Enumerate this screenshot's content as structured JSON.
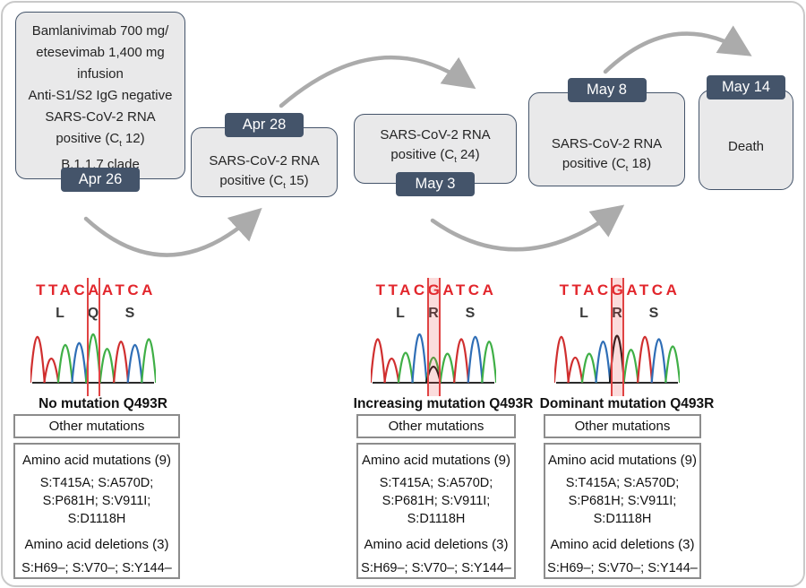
{
  "timeline": {
    "events": [
      {
        "date": "Apr 26",
        "lines": {
          "l1": "Bamlanivimab 700 mg/",
          "l2": "etesevimab 1,400 mg",
          "l3": "infusion",
          "l4": "Anti-S1/S2 IgG negative",
          "l5": "SARS-CoV-2 RNA",
          "ct_pre": "positive (C",
          "ct_sub": "t",
          "ct_post": " 12)",
          "l7": "B.1.1.7 clade"
        }
      },
      {
        "date": "Apr 28",
        "lines": {
          "l1": "SARS-CoV-2 RNA",
          "ct_pre": "positive (C",
          "ct_sub": "t",
          "ct_post": " 15)"
        }
      },
      {
        "date": "May 3",
        "lines": {
          "l1": "SARS-CoV-2 RNA",
          "ct_pre": "positive (C",
          "ct_sub": "t",
          "ct_post": " 24)"
        }
      },
      {
        "date": "May 8",
        "lines": {
          "l1": "SARS-CoV-2 RNA",
          "ct_pre": "positive (C",
          "ct_sub": "t",
          "ct_post": " 18)"
        }
      },
      {
        "date": "May 14",
        "lines": {
          "l1": "Death"
        }
      }
    ]
  },
  "chromatograms": [
    {
      "sequence": "TTACAATCA",
      "amino_acids": [
        "L",
        "Q",
        "S"
      ],
      "caption": "No mutation Q493R",
      "highlight_band": false,
      "slots": [
        [
          {
            "b": "T",
            "h": 0.95
          }
        ],
        [
          {
            "b": "T",
            "h": 0.5
          }
        ],
        [
          {
            "b": "A",
            "h": 0.78
          }
        ],
        [
          {
            "b": "C",
            "h": 0.82
          }
        ],
        [
          {
            "b": "A",
            "h": 1.0
          }
        ],
        [
          {
            "b": "A",
            "h": 0.7
          }
        ],
        [
          {
            "b": "T",
            "h": 0.85
          }
        ],
        [
          {
            "b": "C",
            "h": 0.78
          }
        ],
        [
          {
            "b": "A",
            "h": 0.9
          }
        ]
      ]
    },
    {
      "sequence": "TTACGATCA",
      "amino_acids": [
        "L",
        "R",
        "S"
      ],
      "caption": "Increasing mutation Q493R",
      "highlight_band": true,
      "slots": [
        [
          {
            "b": "T",
            "h": 0.9
          }
        ],
        [
          {
            "b": "T",
            "h": 0.5
          }
        ],
        [
          {
            "b": "A",
            "h": 0.62
          }
        ],
        [
          {
            "b": "C",
            "h": 1.0
          }
        ],
        [
          {
            "b": "A",
            "h": 0.52
          },
          {
            "b": "G",
            "h": 0.33
          }
        ],
        [
          {
            "b": "A",
            "h": 0.6
          }
        ],
        [
          {
            "b": "T",
            "h": 0.9
          }
        ],
        [
          {
            "b": "C",
            "h": 0.95
          }
        ],
        [
          {
            "b": "A",
            "h": 0.85
          }
        ]
      ]
    },
    {
      "sequence": "TTACGATCA",
      "amino_acids": [
        "L",
        "R",
        "S"
      ],
      "caption": "Dominant mutation Q493R",
      "highlight_band": true,
      "slots": [
        [
          {
            "b": "T",
            "h": 0.95
          }
        ],
        [
          {
            "b": "T",
            "h": 0.52
          }
        ],
        [
          {
            "b": "A",
            "h": 0.6
          }
        ],
        [
          {
            "b": "C",
            "h": 0.85
          }
        ],
        [
          {
            "b": "G",
            "h": 0.97
          }
        ],
        [
          {
            "b": "A",
            "h": 0.68
          }
        ],
        [
          {
            "b": "T",
            "h": 0.95
          }
        ],
        [
          {
            "b": "C",
            "h": 0.9
          }
        ],
        [
          {
            "b": "A",
            "h": 0.75
          }
        ]
      ]
    }
  ],
  "mutation_tables": [
    {
      "header": "Other mutations",
      "body_title": "Amino acid mutations (9)",
      "mut_lines": [
        "S:T415A; S:A570D;",
        "S:P681H; S:V911I;",
        "S:D1118H"
      ],
      "deletions_title": "Amino acid deletions (3)",
      "deletions_line": "S:H69–; S:V70–; S:Y144–"
    },
    {
      "header": "Other mutations",
      "body_title": "Amino acid mutations (9)",
      "mut_lines": [
        "S:T415A; S:A570D;",
        "S:P681H; S:V911I;",
        "S:D1118H"
      ],
      "deletions_title": "Amino acid deletions (3)",
      "deletions_line": "S:H69–; S:V70–; S:Y144–"
    },
    {
      "header": "Other mutations",
      "body_title": "Amino acid mutations (9)",
      "mut_lines": [
        "S:T415A; S:A570D;",
        "S:P681H; S:V911I;",
        "S:D1118H"
      ],
      "deletions_title": "Amino acid deletions (3)",
      "deletions_line": "S:H69–; S:V70–; S:Y144–"
    }
  ],
  "base_colors": {
    "A": "#3faf46",
    "C": "#2f6eb6",
    "G": "#1a1a1a",
    "T": "#d02f2f"
  },
  "colors": {
    "badge": "#44546a",
    "box_fill": "#e9e9ea",
    "box_border": "#44546a",
    "arrow": "#ababab",
    "sequence_red": "#e2262c",
    "highlight_line": "#e04343",
    "table_border": "#8c8c8c",
    "frame": "#c9c9c9"
  }
}
